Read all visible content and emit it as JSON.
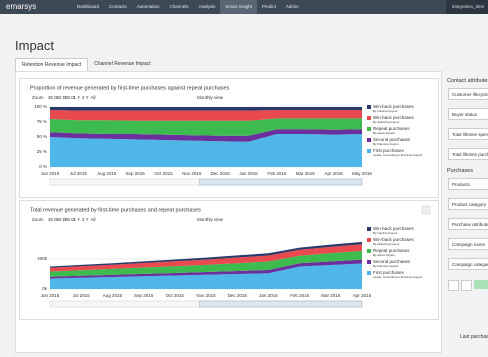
{
  "nav": {
    "brand": "emarsys",
    "items": [
      "Dashboard",
      "Contacts",
      "Automation",
      "Channels",
      "Analysis",
      "Smart Insight",
      "Predict",
      "Admin"
    ],
    "active": "Smart Insight",
    "user": "integration_dem"
  },
  "page_title": "Impact",
  "tabs": [
    "Retention Revenue Impact",
    "Channel Revenue Impact"
  ],
  "charts": [
    {
      "type": "area",
      "title": "Proportion of revenue generated by first-time purchases against repeat purchases",
      "zoom_label": "Zoom",
      "zoom_buttons": [
        "30 D",
        "60 D",
        "90 D",
        "1 Y",
        "2 Y",
        "All"
      ],
      "view": "Monthly view",
      "categories": [
        "Jun 2015",
        "Jul 2015",
        "Aug 2015",
        "Sep 2015",
        "Oct 2015",
        "Nov 2015",
        "Dec 2015",
        "Jan 2016",
        "Feb 2016",
        "Mar 2016",
        "Apr 2016",
        "May 2016"
      ],
      "ylim": [
        0,
        100
      ],
      "yticks": [
        {
          "value": 0,
          "label": "0 %"
        },
        {
          "value": 25,
          "label": "25 %"
        },
        {
          "value": 50,
          "label": "50 %"
        },
        {
          "value": 75,
          "label": "75 %"
        },
        {
          "value": 100,
          "label": "100 %"
        }
      ],
      "series": [
        {
          "name": "First purchases",
          "note": "Leads, converting to first-time buyers",
          "color": "#4fb6e8",
          "values": [
            50,
            48,
            47,
            46,
            45,
            44,
            43,
            42,
            55,
            55,
            54,
            55
          ]
        },
        {
          "name": "Second purchases",
          "note": "By first-time buyers",
          "color": "#6b2f9e",
          "values": [
            8,
            8,
            8,
            9,
            9,
            9,
            9,
            10,
            8,
            8,
            8,
            8
          ]
        },
        {
          "name": "Repeat purchases",
          "note": "By active buyers",
          "color": "#3dbb4e",
          "values": [
            22,
            22,
            23,
            22,
            23,
            24,
            25,
            25,
            18,
            18,
            19,
            18
          ]
        },
        {
          "name": "Win-back purchases",
          "note": "By defecting buyers",
          "color": "#e84a4f",
          "values": [
            15,
            16,
            16,
            17,
            17,
            17,
            17,
            17,
            14,
            14,
            14,
            14
          ]
        },
        {
          "name": "Win-back purchases",
          "note": "By inactive buyers",
          "color": "#2b3a6b",
          "values": [
            5,
            6,
            6,
            6,
            6,
            6,
            6,
            6,
            5,
            5,
            5,
            5
          ]
        }
      ]
    },
    {
      "type": "area",
      "title": "Total revenue generated by first-time purchases and repeat purchases",
      "zoom_label": "Zoom",
      "zoom_buttons": [
        "30 D",
        "60 D",
        "90 D",
        "1 Y",
        "2 Y",
        "All"
      ],
      "view": "Monthly view",
      "categories": [
        "Jun 2015",
        "Jul 2015",
        "Aug 2015",
        "Sep 2015",
        "Oct 2015",
        "Nov 2015",
        "Dec 2015",
        "Jan 2016",
        "Feb 2016",
        "Mar 2016",
        "Apr 2016"
      ],
      "ylim": [
        0,
        400000
      ],
      "yticks": [
        {
          "value": 0,
          "label": "0k"
        },
        {
          "value": 200000,
          "label": "200k"
        }
      ],
      "series": [
        {
          "name": "First purchases",
          "note": "Leads, converting to first-time buyers",
          "color": "#4fb6e8",
          "values": [
            70000,
            75000,
            80000,
            85000,
            90000,
            95000,
            100000,
            105000,
            150000,
            160000,
            170000
          ]
        },
        {
          "name": "Second purchases",
          "note": "By first-time buyers",
          "color": "#6b2f9e",
          "values": [
            12000,
            13000,
            14000,
            16000,
            17000,
            18000,
            20000,
            22000,
            22000,
            24000,
            26000
          ]
        },
        {
          "name": "Repeat purchases",
          "note": "By active buyers",
          "color": "#3dbb4e",
          "values": [
            35000,
            37000,
            40000,
            42000,
            45000,
            48000,
            52000,
            56000,
            50000,
            55000,
            58000
          ]
        },
        {
          "name": "Win-back purchases",
          "note": "By defecting buyers",
          "color": "#e84a4f",
          "values": [
            25000,
            27000,
            28000,
            30000,
            33000,
            35000,
            38000,
            40000,
            40000,
            42000,
            44000
          ]
        },
        {
          "name": "Win-back purchases",
          "note": "By inactive buyers",
          "color": "#2b3a6b",
          "values": [
            8000,
            9000,
            10000,
            11000,
            12000,
            13000,
            14000,
            15000,
            14000,
            15000,
            16000
          ]
        }
      ]
    }
  ],
  "sidebar": {
    "contact_heading": "Contact attributes",
    "contact_items": [
      "Customer lifecycle",
      "Buyer status",
      "Total lifetime spend",
      "Total lifetime purchases"
    ],
    "purchase_heading": "Purchases",
    "purchase_items": [
      "Products",
      "Product category",
      "Purchase attributes",
      "Campaign name",
      "Campaign category"
    ],
    "footer": "Last purchase"
  }
}
